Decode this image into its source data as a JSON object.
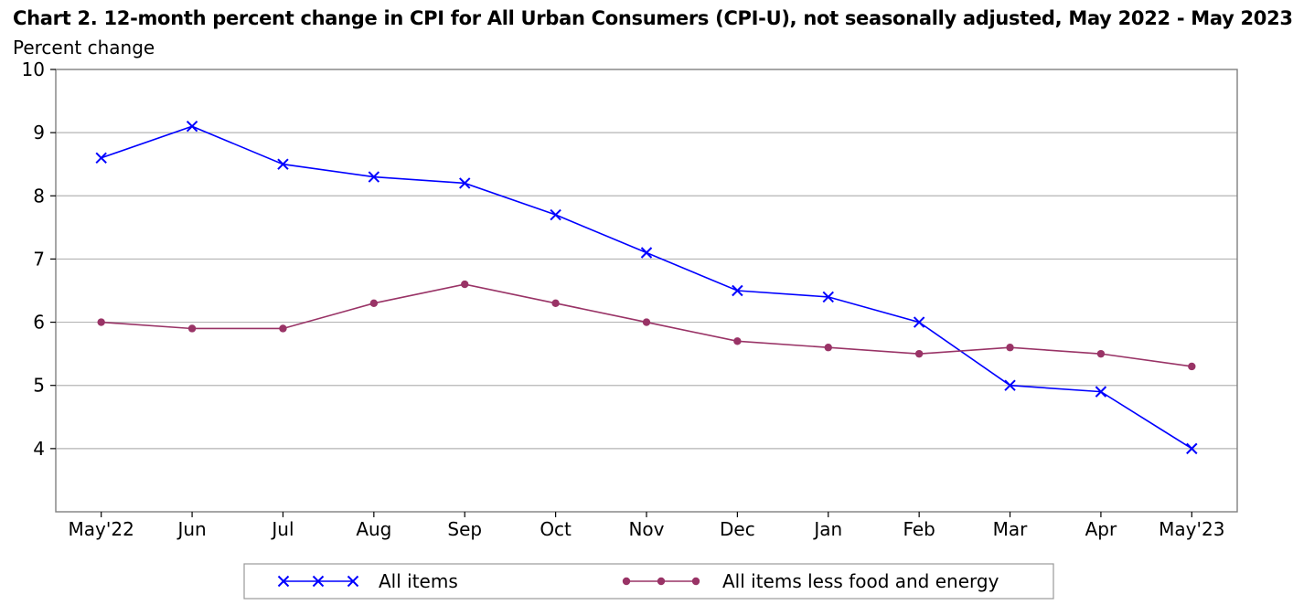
{
  "chart_data": {
    "type": "line",
    "title": "Chart 2. 12-month percent change in CPI for All Urban Consumers (CPI-U), not seasonally adjusted, May 2022 - May 2023",
    "ylabel": "Percent change",
    "xlabel": "",
    "categories": [
      "May'22",
      "Jun",
      "Jul",
      "Aug",
      "Sep",
      "Oct",
      "Nov",
      "Dec",
      "Jan",
      "Feb",
      "Mar",
      "Apr",
      "May'23"
    ],
    "ylim": [
      3,
      10
    ],
    "yticks": [
      4,
      5,
      6,
      7,
      8,
      9,
      10
    ],
    "grid": true,
    "legend_position": "bottom",
    "series": [
      {
        "name": "All items",
        "color": "#0000ff",
        "marker": "x",
        "values": [
          8.6,
          9.1,
          8.5,
          8.3,
          8.2,
          7.7,
          7.1,
          6.5,
          6.4,
          6.0,
          5.0,
          4.9,
          4.0
        ]
      },
      {
        "name": "All items less food and energy",
        "color": "#993366",
        "marker": "circle",
        "values": [
          6.0,
          5.9,
          5.9,
          6.3,
          6.6,
          6.3,
          6.0,
          5.7,
          5.6,
          5.5,
          5.6,
          5.5,
          5.3
        ]
      }
    ]
  }
}
